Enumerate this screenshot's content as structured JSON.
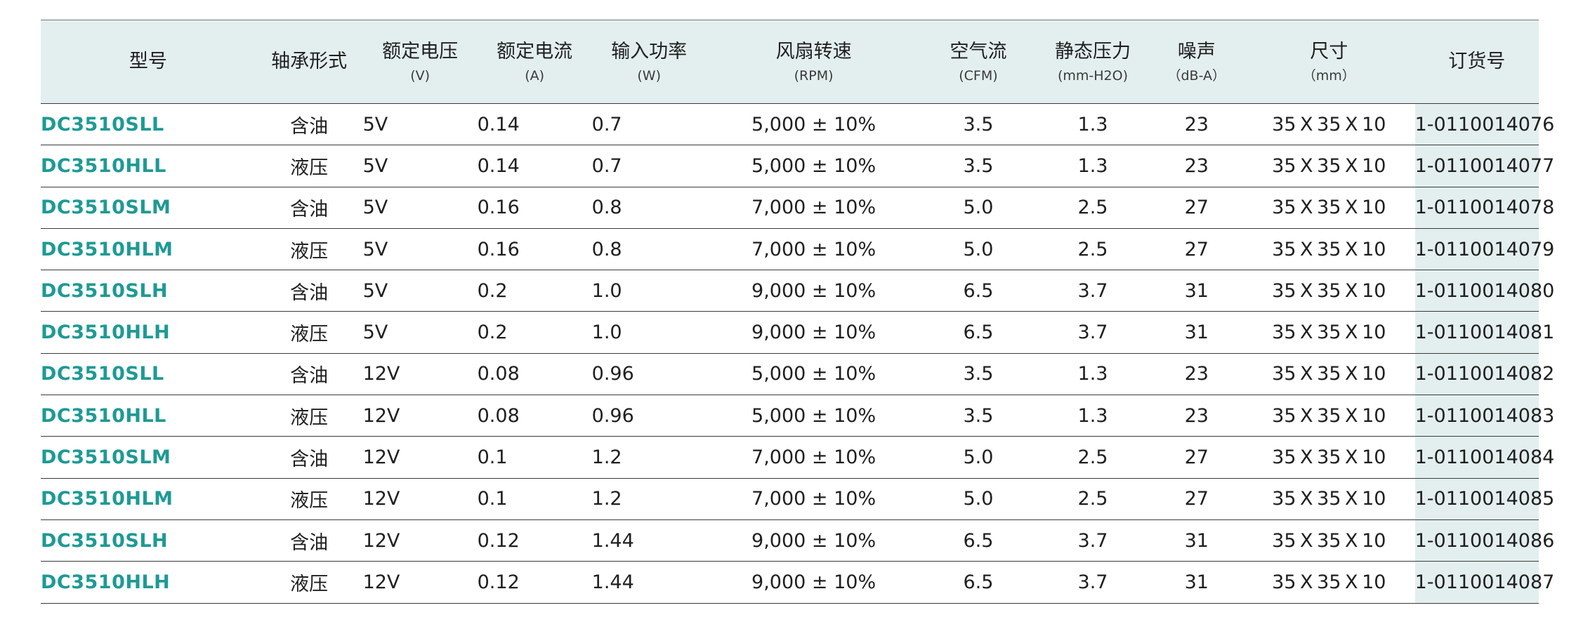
{
  "headers": [
    {
      "title": "型号",
      "unit": ""
    },
    {
      "title": "轴承形式",
      "unit": ""
    },
    {
      "title": "额定电压",
      "unit": "(V)"
    },
    {
      "title": "额定电流",
      "unit": "(A)"
    },
    {
      "title": "输入功率",
      "unit": "(W)"
    },
    {
      "title": "风扇转速",
      "unit": "(RPM)"
    },
    {
      "title": "空气流",
      "unit": "(CFM)"
    },
    {
      "title": "静态压力",
      "unit": "(mm-H2O)"
    },
    {
      "title": "噪声",
      "unit": "（dB-A）"
    },
    {
      "title": "尺寸",
      "unit": "（mm）"
    },
    {
      "title": "订货号",
      "unit": ""
    }
  ],
  "rows": [
    [
      "DC3510SLL",
      "含油",
      "5V",
      "0.14",
      "0.7",
      "5,000 ± 10%",
      "3.5",
      "1.3",
      "23",
      "35 X 35 X 10",
      "1-0110014076"
    ],
    [
      "DC3510HLL",
      "液压",
      "5V",
      "0.14",
      "0.7",
      "5,000 ± 10%",
      "3.5",
      "1.3",
      "23",
      "35 X 35 X 10",
      "1-0110014077"
    ],
    [
      "DC3510SLM",
      "含油",
      "5V",
      "0.16",
      "0.8",
      "7,000 ± 10%",
      "5.0",
      "2.5",
      "27",
      "35 X 35 X 10",
      "1-0110014078"
    ],
    [
      "DC3510HLM",
      "液压",
      "5V",
      "0.16",
      "0.8",
      "7,000 ± 10%",
      "5.0",
      "2.5",
      "27",
      "35 X 35 X 10",
      "1-0110014079"
    ],
    [
      "DC3510SLH",
      "含油",
      "5V",
      "0.2",
      "1.0",
      "9,000 ± 10%",
      "6.5",
      "3.7",
      "31",
      "35 X 35 X 10",
      "1-0110014080"
    ],
    [
      "DC3510HLH",
      "液压",
      "5V",
      "0.2",
      "1.0",
      "9,000 ± 10%",
      "6.5",
      "3.7",
      "31",
      "35 X 35 X 10",
      "1-0110014081"
    ],
    [
      "DC3510SLL",
      "含油",
      "12V",
      "0.08",
      "0.96",
      "5,000 ± 10%",
      "3.5",
      "1.3",
      "23",
      "35 X 35 X 10",
      "1-0110014082"
    ],
    [
      "DC3510HLL",
      "液压",
      "12V",
      "0.08",
      "0.96",
      "5,000 ± 10%",
      "3.5",
      "1.3",
      "23",
      "35 X 35 X 10",
      "1-0110014083"
    ],
    [
      "DC3510SLM",
      "含油",
      "12V",
      "0.1",
      "1.2",
      "7,000 ± 10%",
      "5.0",
      "2.5",
      "27",
      "35 X 35 X 10",
      "1-0110014084"
    ],
    [
      "DC3510HLM",
      "液压",
      "12V",
      "0.1",
      "1.2",
      "7,000 ± 10%",
      "5.0",
      "2.5",
      "27",
      "35 X 35 X 10",
      "1-0110014085"
    ],
    [
      "DC3510SLH",
      "含油",
      "12V",
      "0.12",
      "1.44",
      "9,000 ± 10%",
      "6.5",
      "3.7",
      "31",
      "35 X 35 X 10",
      "1-0110014086"
    ],
    [
      "DC3510HLH",
      "液压",
      "12V",
      "0.12",
      "1.44",
      "9,000 ± 10%",
      "6.5",
      "3.7",
      "31",
      "35 X 35 X 10",
      "1-0110014087"
    ]
  ],
  "colors": {
    "header_bg": "#e3efee",
    "model_text": "#1e9a94",
    "rule": "#3a3a3a"
  }
}
